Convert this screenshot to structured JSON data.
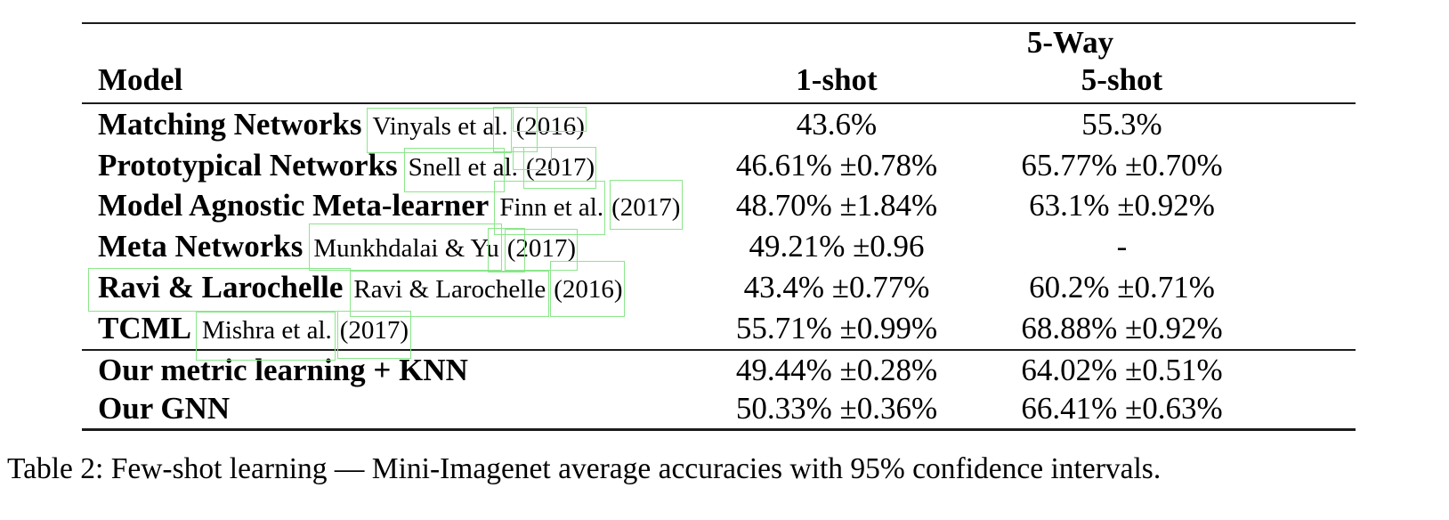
{
  "colors": {
    "annotation_box": "#8be68b",
    "rule": "#1c1c1c",
    "text": "#000000"
  },
  "table": {
    "group_header": "5-Way",
    "columns": [
      "Model",
      "1-shot",
      "5-shot"
    ],
    "rows": [
      {
        "model": "Matching Networks",
        "cite_author": "Vinyals et al.",
        "cite_year": "(2016)",
        "one_shot": "43.6%",
        "five_shot": "55.3%"
      },
      {
        "model": "Prototypical Networks",
        "cite_author": "Snell et al.",
        "cite_year": "(2017)",
        "one_shot": "46.61% ±0.78%",
        "five_shot": "65.77% ±0.70%"
      },
      {
        "model": "Model Agnostic Meta-learner",
        "cite_author": "Finn et al.",
        "cite_year": "(2017)",
        "one_shot": "48.70% ±1.84%",
        "five_shot": "63.1% ±0.92%"
      },
      {
        "model": "Meta Networks",
        "cite_author": "Munkhdalai & Yu",
        "cite_year": "(2017)",
        "one_shot": "49.21% ±0.96",
        "five_shot": "-"
      },
      {
        "model": "Ravi & Larochelle",
        "cite_author": "Ravi & Larochelle",
        "cite_year": "(2016)",
        "one_shot": "43.4% ±0.77%",
        "five_shot": "60.2% ±0.71%"
      },
      {
        "model": "TCML",
        "cite_author": "Mishra et al.",
        "cite_year": "(2017)",
        "one_shot": "55.71% ±0.99%",
        "five_shot": "68.88% ±0.92%"
      },
      {
        "model": "Our metric learning + KNN",
        "one_shot": "49.44% ±0.28%",
        "five_shot": "64.02% ±0.51%"
      },
      {
        "model": "Our GNN",
        "one_shot": "50.33% ±0.36%",
        "five_shot": "66.41% ±0.63%"
      }
    ]
  },
  "caption": "Table 2: Few-shot learning — Mini-Imagenet average accuracies with 95% confidence intervals."
}
